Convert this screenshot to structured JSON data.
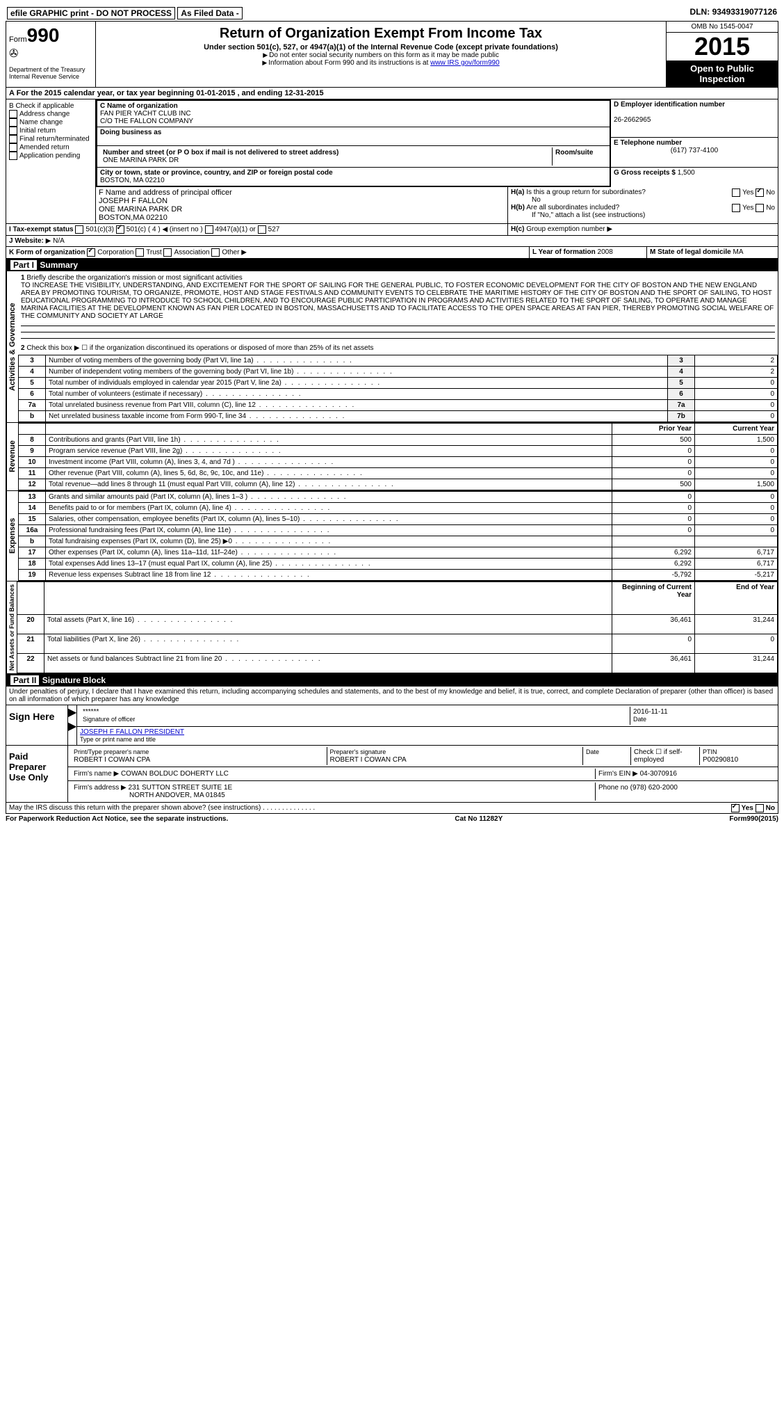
{
  "topbar": {
    "efile": "efile GRAPHIC print - DO NOT PROCESS",
    "asfiled": "As Filed Data -",
    "dln_label": "DLN:",
    "dln": "93493319077126"
  },
  "header": {
    "form_label": "Form",
    "form_num": "990",
    "dept1": "Department of the Treasury",
    "dept2": "Internal Revenue Service",
    "title": "Return of Organization Exempt From Income Tax",
    "sub": "Under section 501(c), 527, or 4947(a)(1) of the Internal Revenue Code (except private foundations)",
    "note1": "Do not enter social security numbers on this form as it may be made public",
    "note2": "Information about Form 990 and its instructions is at",
    "link": "www IRS gov/form990",
    "omb": "OMB No 1545-0047",
    "year": "2015",
    "open": "Open to Public Inspection"
  },
  "section_a": "A  For the 2015 calendar year, or tax year beginning 01-01-2015    , and ending 12-31-2015",
  "col_b": {
    "title": "B Check if applicable",
    "opts": [
      "Address change",
      "Name change",
      "Initial return",
      "Final return/terminated",
      "Amended return",
      "Application pending"
    ]
  },
  "col_c": {
    "name_label": "C Name of organization",
    "name1": "FAN PIER YACHT CLUB INC",
    "name2": "C/O THE FALLON COMPANY",
    "dba_label": "Doing business as",
    "street_label": "Number and street (or P O  box if mail is not delivered to street address)",
    "room_label": "Room/suite",
    "street": "ONE MARINA PARK DR",
    "city_label": "City or town, state or province, country, and ZIP or foreign postal code",
    "city": "BOSTON, MA  02210",
    "officer_label": "F Name and address of principal officer",
    "officer1": "JOSEPH F FALLON",
    "officer2": "ONE MARINA PARK DR",
    "officer3": "BOSTON,MA  02210"
  },
  "col_d": {
    "ein_label": "D Employer identification number",
    "ein": "26-2662965",
    "phone_label": "E Telephone number",
    "phone": "(617) 737-4100",
    "gross_label": "G Gross receipts $",
    "gross": "1,500"
  },
  "h": {
    "ha_label": "H(a)",
    "ha_text": "Is this a group return for subordinates?",
    "ha_ans": "No",
    "hb_label": "H(b)",
    "hb_text": "Are all subordinates included?",
    "hb_note": "If \"No,\" attach a list  (see instructions)",
    "hc_label": "H(c)",
    "hc_text": "Group exemption number",
    "yes": "Yes",
    "no": "No"
  },
  "tax_status": {
    "label": "I  Tax-exempt status",
    "o1": "501(c)(3)",
    "o2": "501(c) ( 4 )",
    "o2_note": "(insert no )",
    "o3": "4947(a)(1) or",
    "o4": "527"
  },
  "website": {
    "label": "J  Website:",
    "val": "N/A"
  },
  "org_form": {
    "label": "K Form of organization",
    "o1": "Corporation",
    "o2": "Trust",
    "o3": "Association",
    "o4": "Other"
  },
  "lyear": {
    "label": "L Year of formation",
    "val": "2008"
  },
  "mstate": {
    "label": "M State of legal domicile",
    "val": "MA"
  },
  "part1": {
    "title": "Part I",
    "subtitle": "Summary",
    "q1_label": "1",
    "q1": "Briefly describe the organization's mission or most significant activities",
    "mission": "TO INCREASE THE VISIBILITY, UNDERSTANDING, AND EXCITEMENT FOR THE SPORT OF SAILING FOR THE GENERAL PUBLIC, TO FOSTER ECONOMIC DEVELOPMENT FOR THE CITY OF BOSTON AND THE NEW ENGLAND AREA BY PROMOTING TOURISM, TO ORGANIZE, PROMOTE, HOST AND STAGE FESTIVALS AND COMMUNITY EVENTS TO CELEBRATE THE MARITIME HISTORY OF THE CITY OF BOSTON AND THE SPORT OF SAILING, TO HOST EDUCATIONAL PROGRAMMING TO INTRODUCE TO SCHOOL CHILDREN, AND TO ENCOURAGE PUBLIC PARTICIPATION IN PROGRAMS AND ACTIVITIES RELATED TO THE SPORT OF SAILING, TO OPERATE AND MANAGE MARINA FACILITIES AT THE DEVELOPMENT KNOWN AS FAN PIER LOCATED IN BOSTON, MASSACHUSETTS AND TO FACILITATE ACCESS TO THE OPEN SPACE AREAS AT FAN PIER, THEREBY PROMOTING SOCIAL WELFARE OF THE COMMUNITY AND SOCIETY AT LARGE",
    "q2": "Check this box ▶ ☐ if the organization discontinued its operations or disposed of more than 25% of its net assets",
    "governance_label": "Activities & Governance",
    "rows_gov": [
      {
        "n": "3",
        "t": "Number of voting members of the governing body (Part VI, line 1a)",
        "c": "3",
        "v": "2"
      },
      {
        "n": "4",
        "t": "Number of independent voting members of the governing body (Part VI, line 1b)",
        "c": "4",
        "v": "2"
      },
      {
        "n": "5",
        "t": "Total number of individuals employed in calendar year 2015 (Part V, line 2a)",
        "c": "5",
        "v": "0"
      },
      {
        "n": "6",
        "t": "Total number of volunteers (estimate if necessary)",
        "c": "6",
        "v": "0"
      },
      {
        "n": "7a",
        "t": "Total unrelated business revenue from Part VIII, column (C), line 12",
        "c": "7a",
        "v": "0"
      },
      {
        "n": "b",
        "t": "Net unrelated business taxable income from Form 990-T, line 34",
        "c": "7b",
        "v": "0"
      }
    ],
    "prior_label": "Prior Year",
    "current_label": "Current Year",
    "revenue_label": "Revenue",
    "rows_rev": [
      {
        "n": "8",
        "t": "Contributions and grants (Part VIII, line 1h)",
        "p": "500",
        "c": "1,500"
      },
      {
        "n": "9",
        "t": "Program service revenue (Part VIII, line 2g)",
        "p": "0",
        "c": "0"
      },
      {
        "n": "10",
        "t": "Investment income (Part VIII, column (A), lines 3, 4, and 7d )",
        "p": "0",
        "c": "0"
      },
      {
        "n": "11",
        "t": "Other revenue (Part VIII, column (A), lines 5, 6d, 8c, 9c, 10c, and 11e)",
        "p": "0",
        "c": "0"
      },
      {
        "n": "12",
        "t": "Total revenue—add lines 8 through 11 (must equal Part VIII, column (A), line 12)",
        "p": "500",
        "c": "1,500"
      }
    ],
    "expenses_label": "Expenses",
    "rows_exp": [
      {
        "n": "13",
        "t": "Grants and similar amounts paid (Part IX, column (A), lines 1–3 )",
        "p": "0",
        "c": "0"
      },
      {
        "n": "14",
        "t": "Benefits paid to or for members (Part IX, column (A), line 4)",
        "p": "0",
        "c": "0"
      },
      {
        "n": "15",
        "t": "Salaries, other compensation, employee benefits (Part IX, column (A), lines 5–10)",
        "p": "0",
        "c": "0"
      },
      {
        "n": "16a",
        "t": "Professional fundraising fees (Part IX, column (A), line 11e)",
        "p": "0",
        "c": "0"
      },
      {
        "n": "b",
        "t": "Total fundraising expenses (Part IX, column (D), line 25) ▶0",
        "p": "",
        "c": ""
      },
      {
        "n": "17",
        "t": "Other expenses (Part IX, column (A), lines 11a–11d, 11f–24e)",
        "p": "6,292",
        "c": "6,717"
      },
      {
        "n": "18",
        "t": "Total expenses Add lines 13–17 (must equal Part IX, column (A), line 25)",
        "p": "6,292",
        "c": "6,717"
      },
      {
        "n": "19",
        "t": "Revenue less expenses Subtract line 18 from line 12",
        "p": "-5,792",
        "c": "-5,217"
      }
    ],
    "net_label": "Net Assets or Fund Balances",
    "begin_label": "Beginning of Current Year",
    "end_label": "End of Year",
    "rows_net": [
      {
        "n": "20",
        "t": "Total assets (Part X, line 16)",
        "p": "36,461",
        "c": "31,244"
      },
      {
        "n": "21",
        "t": "Total liabilities (Part X, line 26)",
        "p": "0",
        "c": "0"
      },
      {
        "n": "22",
        "t": "Net assets or fund balances Subtract line 21 from line 20",
        "p": "36,461",
        "c": "31,244"
      }
    ]
  },
  "part2": {
    "title": "Part II",
    "subtitle": "Signature Block",
    "penalty": "Under penalties of perjury, I declare that I have examined this return, including accompanying schedules and statements, and to the best of my knowledge and belief, it is true, correct, and complete  Declaration of preparer (other than officer) is based on all information of which preparer has any knowledge",
    "sign_label": "Sign Here",
    "sig_stars": "******",
    "sig_of": "Signature of officer",
    "sig_date": "2016-11-11",
    "date_label": "Date",
    "sig_name": "JOSEPH F FALLON PRESIDENT",
    "sig_type": "Type or print name and title",
    "paid_label": "Paid Preparer Use Only",
    "prep_name_label": "Print/Type preparer's name",
    "prep_name": "ROBERT I COWAN CPA",
    "prep_sig_label": "Preparer's signature",
    "prep_sig": "ROBERT I COWAN CPA",
    "prep_date_label": "Date",
    "self_emp": "Check ☐ if self-employed",
    "ptin_label": "PTIN",
    "ptin": "P00290810",
    "firm_name_label": "Firm's name    ▶",
    "firm_name": "COWAN BOLDUC DOHERTY LLC",
    "firm_ein_label": "Firm's EIN ▶",
    "firm_ein": "04-3070916",
    "firm_addr_label": "Firm's address ▶",
    "firm_addr1": "231 SUTTON STREET SUITE 1E",
    "firm_addr2": "NORTH ANDOVER, MA  01845",
    "firm_phone_label": "Phone no",
    "firm_phone": "(978) 620-2000",
    "discuss": "May the IRS discuss this return with the preparer shown above? (see instructions)",
    "discuss_yes": "Yes",
    "discuss_no": "No"
  },
  "footer": {
    "pra": "For Paperwork Reduction Act Notice, see the separate instructions.",
    "cat": "Cat No 11282Y",
    "form": "Form990(2015)"
  }
}
